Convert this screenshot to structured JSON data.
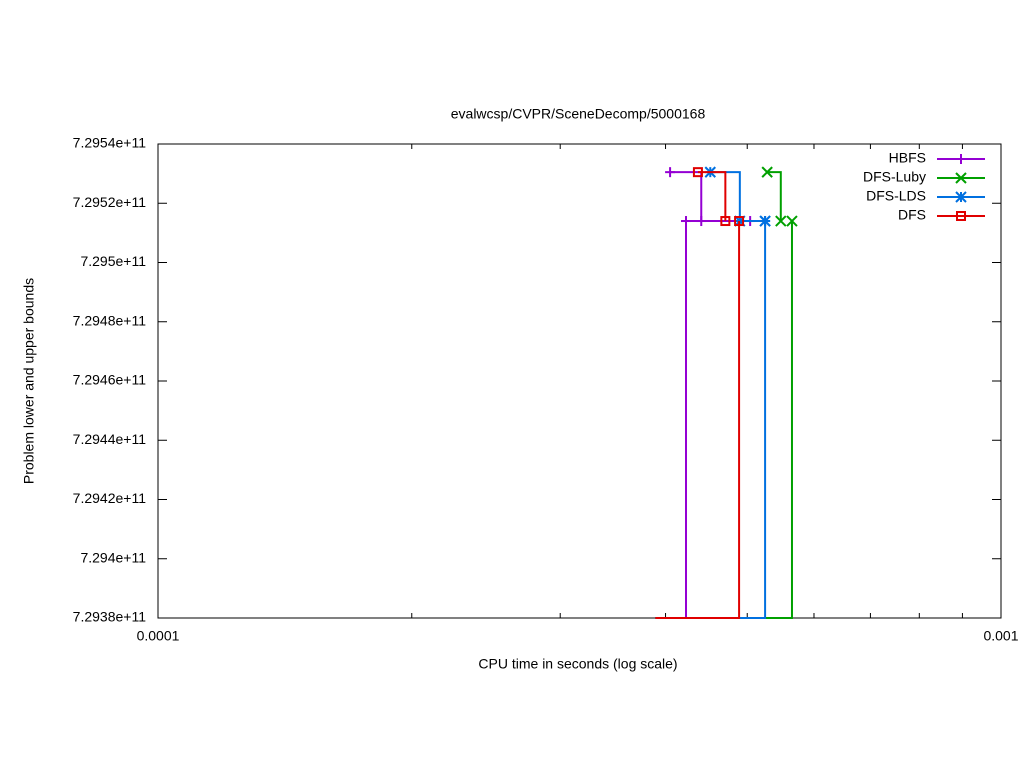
{
  "chart_data": {
    "type": "step",
    "title": "evalwcsp/CVPR/SceneDecomp/5000168",
    "x_label": "CPU time in seconds (log scale)",
    "y_label": "Problem lower and upper bounds",
    "xlog": true,
    "xlim": [
      0.0001,
      0.001
    ],
    "xticks": [
      0.0001,
      0.001
    ],
    "xminorticks": [
      0.0002,
      0.0003,
      0.0004,
      0.0005,
      0.0006,
      0.0007,
      0.0008,
      0.0009
    ],
    "ylim": [
      729380000000,
      729540000000
    ],
    "yticks": [
      {
        "value": 729380000000,
        "label": "7.2938e+11"
      },
      {
        "value": 729400000000,
        "label": "7.294e+11"
      },
      {
        "value": 729420000000,
        "label": "7.2942e+11"
      },
      {
        "value": 729440000000,
        "label": "7.2944e+11"
      },
      {
        "value": 729460000000,
        "label": "7.2946e+11"
      },
      {
        "value": 729480000000,
        "label": "7.2948e+11"
      },
      {
        "value": 729500000000,
        "label": "7.295e+11"
      },
      {
        "value": 729520000000,
        "label": "7.2952e+11"
      },
      {
        "value": 729540000000,
        "label": "7.2954e+11"
      }
    ],
    "legend": "top-right",
    "series": [
      {
        "name": "HBFS",
        "color": "#9400d3",
        "marker": "plus",
        "lower": {
          "x": [
            0.000389,
            0.000423,
            0.000504
          ],
          "values": [
            729380000000,
            729514000000,
            729514000000
          ]
        },
        "upper": {
          "x": [
            0.000405,
            0.000441
          ],
          "values": [
            729530500000,
            729514000000
          ]
        }
      },
      {
        "name": "DFS-Luby",
        "color": "#00a000",
        "marker": "cross",
        "lower": {
          "x": [
            0.000389,
            0.000565
          ],
          "values": [
            729380000000,
            729514000000
          ]
        },
        "upper": {
          "x": [
            0.000528,
            0.000548
          ],
          "values": [
            729530500000,
            729514000000
          ]
        }
      },
      {
        "name": "DFS-LDS",
        "color": "#0070e0",
        "marker": "star",
        "lower": {
          "x": [
            0.000389,
            0.000525
          ],
          "values": [
            729380000000,
            729514000000
          ]
        },
        "upper": {
          "x": [
            0.000452,
            0.00049,
            0.000525
          ],
          "values": [
            729530500000,
            729514000000,
            729514000000
          ]
        }
      },
      {
        "name": "DFS",
        "color": "#e00000",
        "marker": "square",
        "lower": {
          "x": [
            0.000389,
            0.000489
          ],
          "values": [
            729380000000,
            729514000000
          ]
        },
        "upper": {
          "x": [
            0.000437,
            0.000471
          ],
          "values": [
            729530500000,
            729514000000
          ]
        }
      }
    ]
  }
}
